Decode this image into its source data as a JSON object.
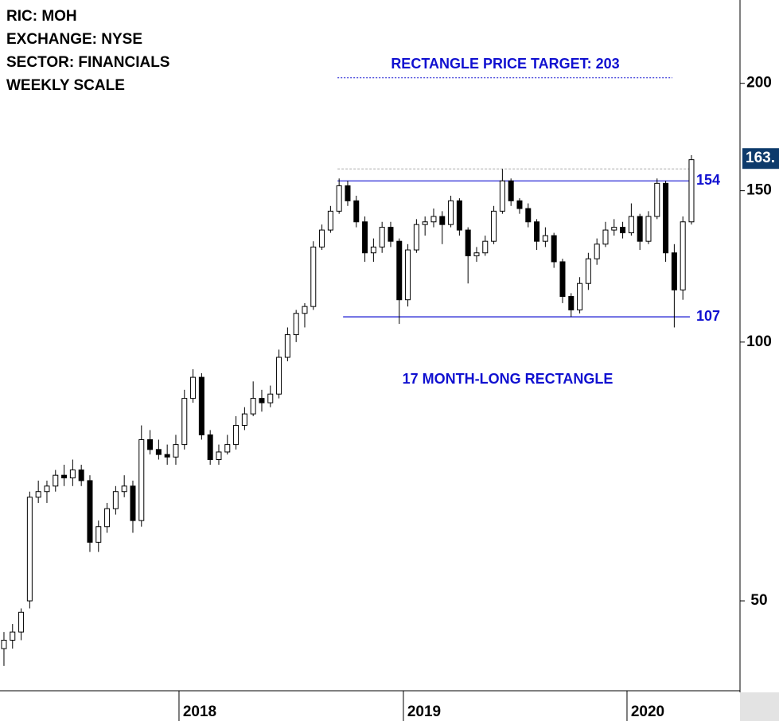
{
  "chart_data": {
    "type": "candlestick",
    "header": [
      "RIC: MOH",
      "EXCHANGE: NYSE",
      "SECTOR: FINANCIALS",
      "WEEKLY SCALE"
    ],
    "open": [
      44,
      45,
      46,
      50,
      66,
      67,
      68,
      70,
      69.5,
      71,
      69,
      58.5,
      61,
      64,
      67,
      68,
      62,
      77,
      75,
      74,
      73.5,
      76,
      86,
      91,
      78,
      73,
      74.5,
      76,
      80,
      82.5,
      86,
      85,
      87,
      96,
      102,
      108,
      110,
      129,
      135,
      142,
      152,
      146,
      138,
      127,
      129,
      136,
      131,
      112,
      128,
      137,
      138,
      140,
      137,
      146,
      135,
      126,
      127,
      131,
      142,
      154,
      146,
      143,
      138,
      131,
      133,
      124,
      113,
      109,
      117,
      125,
      130,
      135,
      136,
      134,
      140,
      131,
      140,
      153,
      127,
      115,
      138
    ],
    "high": [
      46,
      47,
      49,
      67,
      69,
      69,
      71,
      72,
      73,
      72,
      70,
      62,
      65,
      68,
      70,
      69,
      80,
      79,
      77,
      76,
      78,
      88,
      93,
      92,
      79,
      76,
      78,
      82,
      84,
      90,
      88,
      89,
      98,
      104,
      109,
      111,
      131,
      137,
      144,
      155,
      154,
      148,
      140,
      132,
      138,
      138,
      132,
      130,
      139,
      140,
      143,
      142,
      148,
      147,
      136,
      129,
      133,
      144,
      159,
      155,
      147,
      145,
      139,
      136,
      134,
      125,
      114,
      119,
      127,
      132,
      138,
      139,
      138,
      145,
      141,
      142,
      155,
      154,
      130,
      140,
      165
    ],
    "low": [
      42,
      44,
      45,
      49,
      65,
      65,
      67,
      68,
      68,
      68,
      57,
      57,
      60,
      63,
      66,
      60,
      61,
      74,
      73,
      72,
      72,
      75,
      85,
      77,
      72,
      72,
      74,
      75,
      79,
      82,
      83,
      84,
      86,
      95,
      100,
      104,
      109,
      128,
      134,
      141,
      144,
      136,
      124,
      124,
      127,
      129,
      105,
      110,
      127,
      133,
      136,
      130,
      136,
      133,
      117,
      124,
      126,
      130,
      141,
      144,
      141,
      136,
      128,
      129,
      122,
      111,
      107,
      108,
      115,
      123,
      129,
      133,
      132,
      133,
      128,
      130,
      139,
      124,
      104,
      112,
      137
    ],
    "close": [
      45,
      46,
      48.5,
      66,
      67,
      68,
      70,
      69.5,
      71,
      69,
      58.5,
      61,
      64,
      67,
      68,
      62,
      77,
      75,
      74,
      73.5,
      76,
      86,
      91,
      78,
      73,
      74.5,
      76,
      80,
      82.5,
      86,
      85,
      87,
      96,
      102,
      108,
      110,
      129,
      135,
      142,
      152,
      146,
      138,
      127,
      129,
      136,
      131,
      112,
      128,
      137,
      138,
      140,
      137,
      146,
      135,
      126,
      127,
      131,
      142,
      154,
      146,
      143,
      138,
      131,
      133,
      124,
      113,
      109,
      117,
      125,
      130,
      135,
      136,
      134,
      140,
      131,
      140,
      153,
      127,
      115,
      138,
      163
    ],
    "log_scale": true,
    "ylim": [
      39.3,
      250
    ],
    "yticks": [
      50,
      100,
      150,
      200
    ],
    "xlim": [
      -0.46,
      85.65
    ],
    "xticks": [
      {
        "value": 20.37,
        "label": "2018"
      },
      {
        "value": 46.48,
        "label": "2019"
      },
      {
        "value": 72.5,
        "label": "2020"
      }
    ],
    "levels": [
      154,
      107
    ],
    "prior_high": 159,
    "target": {
      "value": 203,
      "text": "RECTANGLE PRICE TARGET: 203"
    },
    "pattern_label": "17 MONTH-LONG RECTANGLE",
    "last_price": {
      "value": 163.5,
      "label": "163."
    },
    "up_color": "#ffffff",
    "down_color": "#000000",
    "level_color": "#1010d0"
  }
}
